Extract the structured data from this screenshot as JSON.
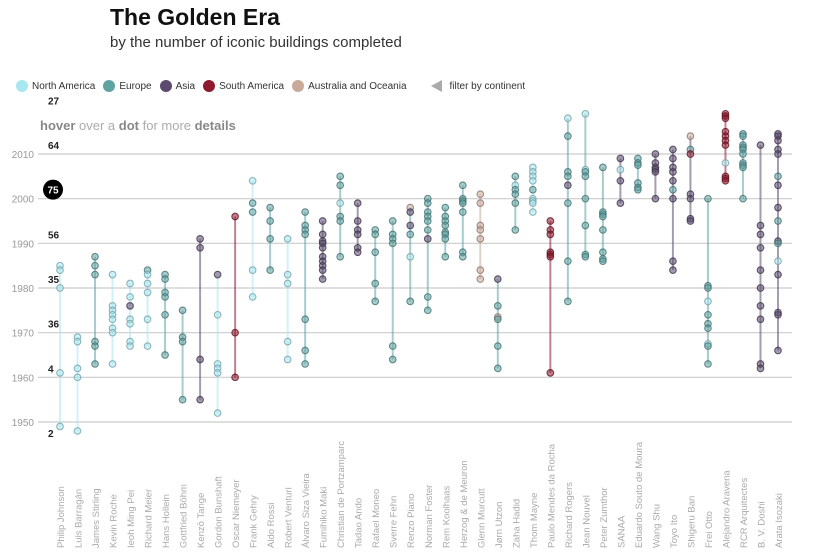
{
  "header": {
    "title": "The Golden Era",
    "subtitle": "by the number of iconic buildings completed"
  },
  "legend": {
    "items": [
      {
        "code": "NA",
        "label": "North America",
        "color": "#a8e6f0"
      },
      {
        "code": "EU",
        "label": "Europe",
        "color": "#5fa3a3"
      },
      {
        "code": "AS",
        "label": "Asia",
        "color": "#5b4a6e"
      },
      {
        "code": "SA",
        "label": "South America",
        "color": "#8e1a2e"
      },
      {
        "code": "OC",
        "label": "Australia and Oceania",
        "color": "#c9a99a"
      }
    ],
    "filter_label": "filter by continent"
  },
  "hint": {
    "w1": "hover",
    "w2": " over a ",
    "w3": "dot",
    "w4": " for more ",
    "w5": "details"
  },
  "chart_data": {
    "type": "scatter",
    "title": "The Golden Era",
    "subtitle": "by the number of iconic buildings completed",
    "ylim": [
      1948,
      2019
    ],
    "yticks": [
      1950,
      1960,
      1970,
      1980,
      1990,
      2000,
      2010
    ],
    "grid": true,
    "decade_counts": [
      {
        "decade": 2010,
        "count": "27"
      },
      {
        "decade": 2000,
        "count": "64"
      },
      {
        "decade": 1990,
        "count": "75",
        "highlight": true
      },
      {
        "decade": 1980,
        "count": "56"
      },
      {
        "decade": 1970,
        "count": "35"
      },
      {
        "decade": 1960,
        "count": "36"
      },
      {
        "decade": 1950,
        "count": "4"
      },
      {
        "decade": 1940,
        "count": "2"
      }
    ],
    "architects": [
      {
        "name": "Philip Johnson",
        "c": "NA",
        "pts": [
          [
            1985
          ],
          [
            1984
          ],
          [
            1980
          ],
          [
            1961
          ],
          [
            1949
          ]
        ]
      },
      {
        "name": "Luis Barragán",
        "c": "NA",
        "pts": [
          [
            1969
          ],
          [
            1968
          ],
          [
            1962
          ],
          [
            1960
          ],
          [
            1948
          ]
        ]
      },
      {
        "name": "James Stirling",
        "c": "EU",
        "pts": [
          [
            1987
          ],
          [
            1985
          ],
          [
            1983
          ],
          [
            1968
          ],
          [
            1967
          ],
          [
            1963
          ]
        ]
      },
      {
        "name": "Kevin Roche",
        "c": "NA",
        "pts": [
          [
            1983
          ],
          [
            1976
          ],
          [
            1975
          ],
          [
            1974
          ],
          [
            1973
          ],
          [
            1971
          ],
          [
            1970
          ],
          [
            1963
          ]
        ]
      },
      {
        "name": "Ieoh Ming Pei",
        "c": "NA",
        "pts": [
          [
            1981
          ],
          [
            1978
          ],
          [
            1976,
            "AS"
          ],
          [
            1973
          ],
          [
            1972
          ],
          [
            1968
          ],
          [
            1967
          ]
        ]
      },
      {
        "name": "Richard Meier",
        "c": "NA",
        "pts": [
          [
            1984,
            "EU"
          ],
          [
            1983
          ],
          [
            1981
          ],
          [
            1979
          ],
          [
            1973
          ],
          [
            1967
          ]
        ]
      },
      {
        "name": "Hans Hollein",
        "c": "EU",
        "pts": [
          [
            1983
          ],
          [
            1982
          ],
          [
            1979
          ],
          [
            1978
          ],
          [
            1974
          ],
          [
            1965
          ]
        ]
      },
      {
        "name": "Gottfried Böhm",
        "c": "EU",
        "pts": [
          [
            1975
          ],
          [
            1969
          ],
          [
            1968
          ],
          [
            1955
          ]
        ]
      },
      {
        "name": "Kenzō Tange",
        "c": "AS",
        "pts": [
          [
            1991
          ],
          [
            1989
          ],
          [
            1964
          ],
          [
            1955
          ]
        ]
      },
      {
        "name": "Gordon Bunshaft",
        "c": "NA",
        "pts": [
          [
            1983,
            "AS"
          ],
          [
            1974
          ],
          [
            1963
          ],
          [
            1962
          ],
          [
            1961
          ],
          [
            1952
          ]
        ]
      },
      {
        "name": "Oscar Niemeyer",
        "c": "SA",
        "pts": [
          [
            1996
          ],
          [
            1970
          ],
          [
            1960
          ]
        ]
      },
      {
        "name": "Frank Gehry",
        "c": "NA",
        "pts": [
          [
            2004
          ],
          [
            1999,
            "EU"
          ],
          [
            1997,
            "EU"
          ],
          [
            1984
          ],
          [
            1978
          ]
        ]
      },
      {
        "name": "Aldo Rossi",
        "c": "EU",
        "pts": [
          [
            1998
          ],
          [
            1995
          ],
          [
            1991
          ],
          [
            1984
          ]
        ]
      },
      {
        "name": "Robert Venturi",
        "c": "NA",
        "pts": [
          [
            1991
          ],
          [
            1983
          ],
          [
            1981
          ],
          [
            1968
          ],
          [
            1964
          ]
        ]
      },
      {
        "name": "Álvaro Siza Vieira",
        "c": "EU",
        "pts": [
          [
            1997
          ],
          [
            1994
          ],
          [
            1993
          ],
          [
            1992
          ],
          [
            1973
          ],
          [
            1966
          ],
          [
            1963
          ]
        ]
      },
      {
        "name": "Fumihiko Maki",
        "c": "AS",
        "pts": [
          [
            1995
          ],
          [
            1992
          ],
          [
            1990.5
          ],
          [
            1990
          ],
          [
            1989
          ],
          [
            1987
          ],
          [
            1986
          ],
          [
            1985
          ],
          [
            1984
          ],
          [
            1982
          ]
        ]
      },
      {
        "name": "Christian de Portzamparc",
        "c": "EU",
        "pts": [
          [
            2005
          ],
          [
            2003
          ],
          [
            1999,
            "NA"
          ],
          [
            1996
          ],
          [
            1995
          ],
          [
            1987
          ]
        ]
      },
      {
        "name": "Tadao Ando",
        "c": "AS",
        "pts": [
          [
            1999
          ],
          [
            1995
          ],
          [
            1993
          ],
          [
            1992
          ],
          [
            1989
          ],
          [
            1988
          ]
        ]
      },
      {
        "name": "Rafael Moneo",
        "c": "EU",
        "pts": [
          [
            1993
          ],
          [
            1992
          ],
          [
            1988
          ],
          [
            1981
          ],
          [
            1977
          ]
        ]
      },
      {
        "name": "Sverre Fehn",
        "c": "EU",
        "pts": [
          [
            1995
          ],
          [
            1992
          ],
          [
            1991
          ],
          [
            1990
          ],
          [
            1967
          ],
          [
            1964
          ]
        ]
      },
      {
        "name": "Renzo Piano",
        "c": "EU",
        "pts": [
          [
            1998,
            "OC"
          ],
          [
            1997,
            "AS"
          ],
          [
            1994,
            "AS"
          ],
          [
            1992
          ],
          [
            1987,
            "NA"
          ],
          [
            1977
          ]
        ]
      },
      {
        "name": "Norman Foster",
        "c": "EU",
        "pts": [
          [
            2000
          ],
          [
            1999
          ],
          [
            1997
          ],
          [
            1996
          ],
          [
            1995
          ],
          [
            1993
          ],
          [
            1991,
            "AS"
          ],
          [
            1978
          ],
          [
            1975
          ]
        ]
      },
      {
        "name": "Rem Koolhaas",
        "c": "EU",
        "pts": [
          [
            1998
          ],
          [
            1996
          ],
          [
            1995
          ],
          [
            1994
          ],
          [
            1992.5
          ],
          [
            1992
          ],
          [
            1991
          ],
          [
            1987
          ]
        ]
      },
      {
        "name": "Herzog & de Meuron",
        "c": "EU",
        "pts": [
          [
            2003
          ],
          [
            2000
          ],
          [
            1999.5
          ],
          [
            1999
          ],
          [
            1997
          ],
          [
            1988
          ],
          [
            1987
          ]
        ]
      },
      {
        "name": "Glenn Murcutt",
        "c": "OC",
        "pts": [
          [
            2001
          ],
          [
            1999
          ],
          [
            1994
          ],
          [
            1993
          ],
          [
            1991
          ],
          [
            1984
          ],
          [
            1982
          ]
        ]
      },
      {
        "name": "Jørn Utzon",
        "c": "EU",
        "pts": [
          [
            1982,
            "AS"
          ],
          [
            1976
          ],
          [
            1973.5,
            "OC"
          ],
          [
            1973
          ],
          [
            1967
          ],
          [
            1962
          ]
        ]
      },
      {
        "name": "Zaha Hadid",
        "c": "EU",
        "pts": [
          [
            2005
          ],
          [
            2003,
            "NA"
          ],
          [
            2002
          ],
          [
            2001
          ],
          [
            1999
          ],
          [
            1993
          ]
        ]
      },
      {
        "name": "Thom Mayne",
        "c": "NA",
        "pts": [
          [
            2007
          ],
          [
            2006
          ],
          [
            2005
          ],
          [
            2004
          ],
          [
            2002,
            "EU"
          ],
          [
            2000
          ],
          [
            1999.5
          ],
          [
            1999
          ],
          [
            1997
          ]
        ]
      },
      {
        "name": "Paulo Mendes da Rocha",
        "c": "SA",
        "pts": [
          [
            1995
          ],
          [
            1993
          ],
          [
            1992
          ],
          [
            1988
          ],
          [
            1987.5
          ],
          [
            1987
          ],
          [
            1961
          ]
        ]
      },
      {
        "name": "Richard Rogers",
        "c": "EU",
        "pts": [
          [
            2018,
            "NA"
          ],
          [
            2014
          ],
          [
            2006
          ],
          [
            2005
          ],
          [
            2003,
            "AS"
          ],
          [
            1999
          ],
          [
            1986
          ],
          [
            1977
          ]
        ]
      },
      {
        "name": "Jean Nouvel",
        "c": "EU",
        "pts": [
          [
            2019,
            "NA"
          ],
          [
            2006.5,
            "NA"
          ],
          [
            2006
          ],
          [
            2005
          ],
          [
            2000
          ],
          [
            1994
          ],
          [
            1987.5
          ],
          [
            1987
          ]
        ]
      },
      {
        "name": "Peter Zumthor",
        "c": "EU",
        "pts": [
          [
            2007
          ],
          [
            1997
          ],
          [
            1996.5
          ],
          [
            1996
          ],
          [
            1993
          ],
          [
            1988
          ],
          [
            1986.5
          ],
          [
            1986
          ]
        ]
      },
      {
        "name": "SANAA",
        "c": "AS",
        "pts": [
          [
            2009
          ],
          [
            2006.5,
            "NA"
          ],
          [
            2004
          ],
          [
            1999
          ]
        ]
      },
      {
        "name": "Eduardo Souto de Moura",
        "c": "EU",
        "pts": [
          [
            2009
          ],
          [
            2008
          ],
          [
            2007.5
          ],
          [
            2003.5
          ],
          [
            2002.5
          ],
          [
            2002
          ]
        ]
      },
      {
        "name": "Wang Shu",
        "c": "AS",
        "pts": [
          [
            2010
          ],
          [
            2008
          ],
          [
            2007
          ],
          [
            2006.5
          ],
          [
            2006
          ],
          [
            2000
          ]
        ]
      },
      {
        "name": "Toyo Ito",
        "c": "AS",
        "pts": [
          [
            2011
          ],
          [
            2009
          ],
          [
            2007
          ],
          [
            2006
          ],
          [
            2004
          ],
          [
            2002,
            "EU"
          ],
          [
            2000
          ],
          [
            1986
          ],
          [
            1984
          ]
        ]
      },
      {
        "name": "Shigeru Ban",
        "c": "AS",
        "pts": [
          [
            2014,
            "OC"
          ],
          [
            2011,
            "EU"
          ],
          [
            2010,
            "SA"
          ],
          [
            2001
          ],
          [
            2000
          ],
          [
            1995.5
          ],
          [
            1995
          ]
        ]
      },
      {
        "name": "Frei Otto",
        "c": "EU",
        "pts": [
          [
            2000
          ],
          [
            1980.5
          ],
          [
            1980
          ],
          [
            1977,
            "NA"
          ],
          [
            1974
          ],
          [
            1972
          ],
          [
            1971
          ],
          [
            1967.5,
            "NA"
          ],
          [
            1967
          ],
          [
            1963
          ]
        ]
      },
      {
        "name": "Alejandro Aravena",
        "c": "SA",
        "pts": [
          [
            2019
          ],
          [
            2018.5
          ],
          [
            2018
          ],
          [
            2015
          ],
          [
            2014
          ],
          [
            2013
          ],
          [
            2012
          ],
          [
            2008,
            "NA"
          ],
          [
            2005
          ],
          [
            2004.5
          ],
          [
            2004
          ]
        ]
      },
      {
        "name": "RCR Arquitectes",
        "c": "EU",
        "pts": [
          [
            2014.5
          ],
          [
            2014
          ],
          [
            2012
          ],
          [
            2011.5
          ],
          [
            2011
          ],
          [
            2010
          ],
          [
            2008
          ],
          [
            2007.5
          ],
          [
            2007
          ],
          [
            2000
          ]
        ]
      },
      {
        "name": "B. V. Doshi",
        "c": "AS",
        "pts": [
          [
            2012
          ],
          [
            1994
          ],
          [
            1992
          ],
          [
            1989
          ],
          [
            1984
          ],
          [
            1980
          ],
          [
            1976
          ],
          [
            1973
          ],
          [
            1963
          ],
          [
            1962
          ]
        ]
      },
      {
        "name": "Arata Isozaki",
        "c": "AS",
        "pts": [
          [
            2014.5
          ],
          [
            2014
          ],
          [
            2013
          ],
          [
            2011
          ],
          [
            2010
          ],
          [
            2005,
            "EU"
          ],
          [
            2003
          ],
          [
            1998
          ],
          [
            1995,
            "EU"
          ],
          [
            1990.5
          ],
          [
            1990,
            "EU"
          ],
          [
            1986,
            "NA"
          ],
          [
            1983
          ],
          [
            1974.5
          ],
          [
            1974
          ],
          [
            1966
          ]
        ]
      }
    ]
  }
}
